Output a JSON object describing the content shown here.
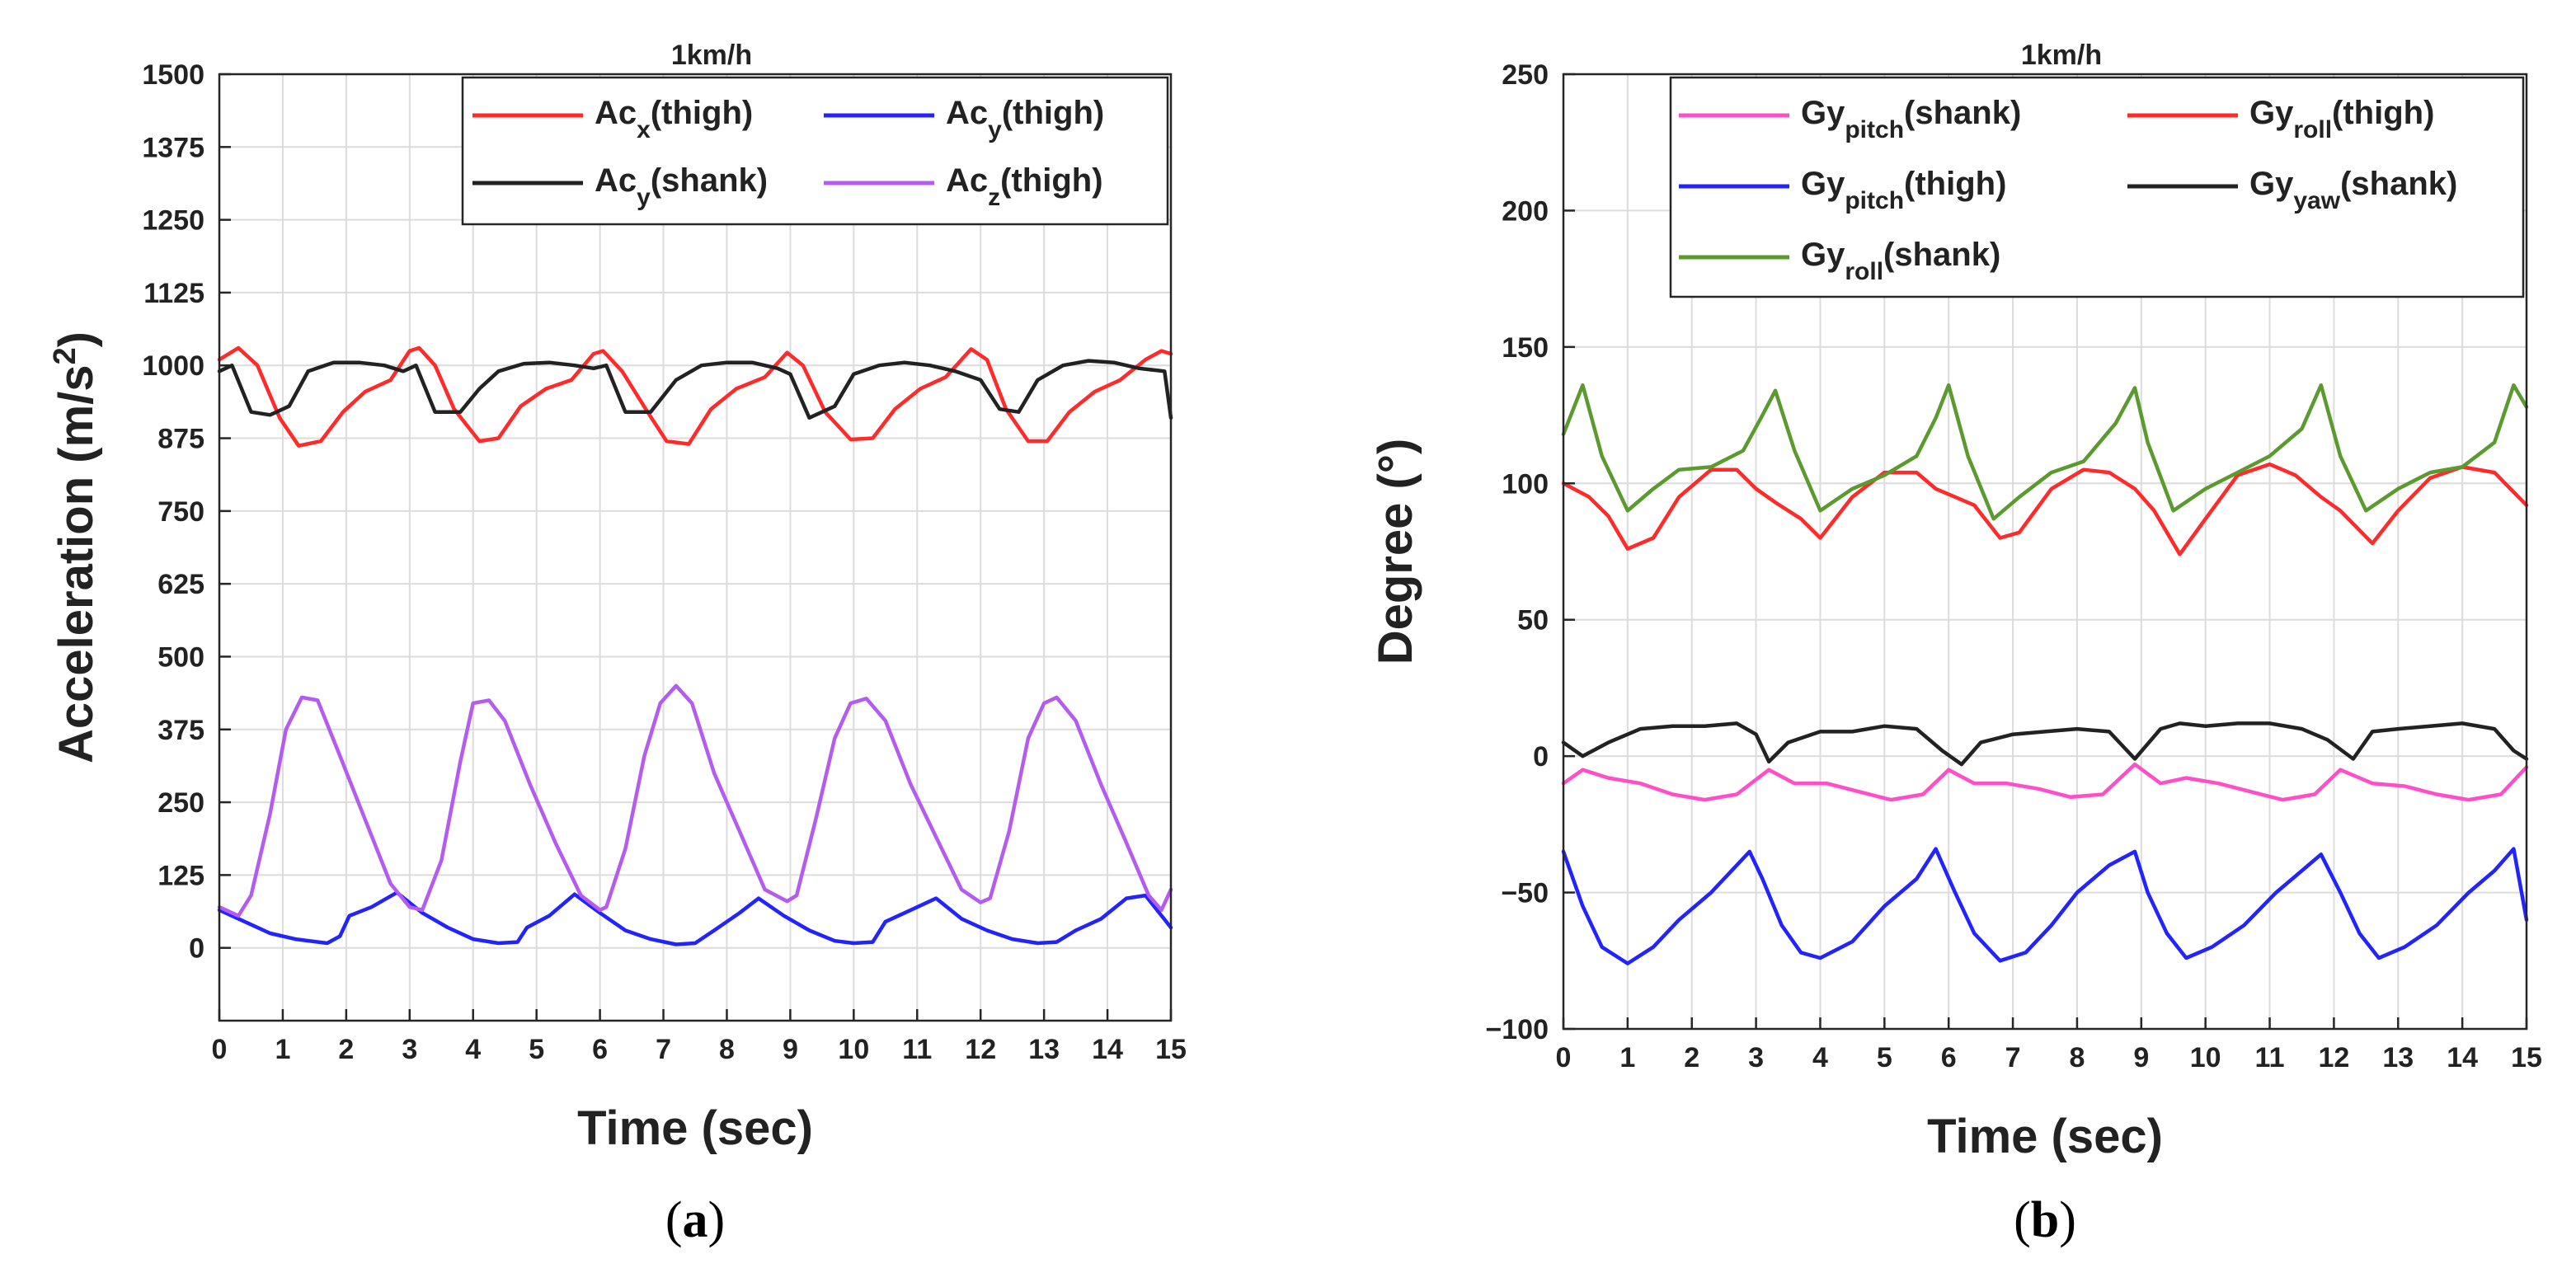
{
  "chart_data": [
    {
      "type": "line",
      "panel_label": "(a)",
      "panel_letter": "a",
      "title": "1km/h",
      "xlabel": "Time (sec)",
      "ylabel": "Acceleration (m/s2)",
      "ylabel_parts": {
        "base": "Acceleration (m/s",
        "sup": "2",
        "end": ")"
      },
      "xlim": [
        0,
        15
      ],
      "ylim": [
        -125,
        1500
      ],
      "grid": true,
      "legend_position": "top-right",
      "x_ticks": [
        0,
        1,
        2,
        3,
        4,
        5,
        6,
        7,
        8,
        9,
        10,
        11,
        12,
        13,
        14,
        15
      ],
      "x_tick_labels": [
        "0",
        "1",
        "2",
        "3",
        "4",
        "5",
        "6",
        "7",
        "8",
        "9",
        "10",
        "11",
        "12",
        "13",
        "14",
        "15"
      ],
      "y_ticks": [
        0,
        125,
        250,
        375,
        500,
        625,
        750,
        875,
        1000,
        1125,
        1250,
        1375,
        1500
      ],
      "y_tick_labels": [
        "0",
        "125",
        "250",
        "375",
        "500",
        "625",
        "750",
        "875",
        "1000",
        "1125",
        "1250",
        "1375",
        "1500"
      ],
      "series": [
        {
          "name": "Acx(thigh)",
          "label_base": "Ac",
          "label_sub": "x",
          "label_rest": "(thigh)",
          "color": "#ff2a2a",
          "x": [
            0,
            0.3,
            0.6,
            0.95,
            1.25,
            1.6,
            1.95,
            2.3,
            2.7,
            3.0,
            3.15,
            3.4,
            3.7,
            4.1,
            4.4,
            4.75,
            5.15,
            5.55,
            5.9,
            6.05,
            6.35,
            6.75,
            7.05,
            7.4,
            7.75,
            8.15,
            8.6,
            8.95,
            9.2,
            9.55,
            9.95,
            10.3,
            10.65,
            11.05,
            11.45,
            11.85,
            12.1,
            12.4,
            12.75,
            13.05,
            13.4,
            13.8,
            14.2,
            14.6,
            14.85,
            15.0
          ],
          "values": [
            1010,
            1030,
            1000,
            910,
            862,
            870,
            920,
            955,
            975,
            1025,
            1030,
            1000,
            925,
            870,
            875,
            930,
            960,
            975,
            1020,
            1025,
            990,
            920,
            870,
            865,
            925,
            960,
            980,
            1022,
            1000,
            920,
            873,
            875,
            925,
            960,
            980,
            1028,
            1010,
            925,
            870,
            870,
            920,
            955,
            975,
            1010,
            1025,
            1020
          ]
        },
        {
          "name": "Acy(thigh)",
          "label_base": "Ac",
          "label_sub": "y",
          "label_rest": "(thigh)",
          "color": "#2323ff",
          "x": [
            0,
            0.4,
            0.8,
            1.2,
            1.7,
            1.9,
            2.05,
            2.4,
            2.8,
            3.2,
            3.6,
            4.0,
            4.4,
            4.7,
            4.85,
            5.2,
            5.6,
            6.0,
            6.4,
            6.8,
            7.2,
            7.5,
            7.8,
            8.2,
            8.5,
            8.9,
            9.3,
            9.7,
            10.0,
            10.3,
            10.5,
            10.9,
            11.3,
            11.7,
            12.1,
            12.5,
            12.9,
            13.2,
            13.5,
            13.9,
            14.3,
            14.6,
            15.0
          ],
          "values": [
            65,
            45,
            25,
            15,
            8,
            20,
            55,
            70,
            95,
            60,
            35,
            15,
            8,
            10,
            35,
            55,
            92,
            60,
            30,
            15,
            6,
            8,
            30,
            60,
            85,
            55,
            30,
            12,
            8,
            10,
            45,
            65,
            85,
            50,
            30,
            15,
            8,
            10,
            30,
            50,
            85,
            90,
            35
          ]
        },
        {
          "name": "Acy(shank)",
          "label_base": "Ac",
          "label_sub": "y",
          "label_rest": "(shank)",
          "color": "#222222",
          "x": [
            0,
            0.2,
            0.5,
            0.8,
            1.1,
            1.4,
            1.8,
            2.2,
            2.6,
            2.9,
            3.1,
            3.4,
            3.8,
            4.1,
            4.4,
            4.8,
            5.2,
            5.6,
            5.9,
            6.1,
            6.4,
            6.8,
            7.2,
            7.6,
            8.0,
            8.4,
            8.8,
            9.0,
            9.3,
            9.7,
            10.0,
            10.4,
            10.8,
            11.2,
            11.6,
            12.0,
            12.3,
            12.6,
            12.9,
            13.3,
            13.7,
            14.1,
            14.5,
            14.9,
            15.0
          ],
          "values": [
            990,
            1000,
            920,
            915,
            930,
            990,
            1005,
            1005,
            1000,
            990,
            1000,
            920,
            920,
            960,
            990,
            1003,
            1005,
            1000,
            995,
            1000,
            920,
            920,
            975,
            1000,
            1005,
            1005,
            995,
            985,
            910,
            930,
            985,
            1000,
            1005,
            1000,
            990,
            975,
            925,
            920,
            975,
            1000,
            1008,
            1005,
            995,
            990,
            910
          ]
        },
        {
          "name": "Acz(thigh)",
          "label_base": "Ac",
          "label_sub": "z",
          "label_rest": "(thigh)",
          "color": "#b45cf0",
          "x": [
            0,
            0.3,
            0.5,
            0.8,
            1.05,
            1.3,
            1.55,
            1.9,
            2.3,
            2.7,
            3.0,
            3.2,
            3.5,
            3.8,
            4.0,
            4.25,
            4.5,
            4.9,
            5.3,
            5.7,
            6.0,
            6.1,
            6.4,
            6.7,
            6.95,
            7.2,
            7.45,
            7.8,
            8.2,
            8.6,
            8.95,
            9.1,
            9.4,
            9.7,
            9.95,
            10.2,
            10.5,
            10.9,
            11.3,
            11.7,
            12.0,
            12.15,
            12.45,
            12.75,
            13.0,
            13.2,
            13.5,
            13.9,
            14.3,
            14.65,
            14.85,
            15.0
          ],
          "values": [
            70,
            55,
            90,
            230,
            375,
            430,
            425,
            330,
            220,
            110,
            70,
            65,
            150,
            320,
            420,
            425,
            390,
            280,
            180,
            90,
            65,
            70,
            170,
            330,
            420,
            450,
            420,
            300,
            200,
            100,
            80,
            90,
            220,
            360,
            420,
            428,
            390,
            280,
            190,
            100,
            78,
            85,
            200,
            360,
            420,
            430,
            390,
            280,
            180,
            90,
            65,
            100
          ]
        }
      ]
    },
    {
      "type": "line",
      "panel_label": "(b)",
      "panel_letter": "b",
      "title": "1km/h",
      "xlabel": "Time (sec)",
      "ylabel": "Degree (°)",
      "xlim": [
        0,
        15
      ],
      "ylim": [
        -100,
        250
      ],
      "grid": true,
      "legend_position": "top-right",
      "x_ticks": [
        0,
        1,
        2,
        3,
        4,
        5,
        6,
        7,
        8,
        9,
        10,
        11,
        12,
        13,
        14,
        15
      ],
      "x_tick_labels": [
        "0",
        "1",
        "2",
        "3",
        "4",
        "5",
        "6",
        "7",
        "8",
        "9",
        "10",
        "11",
        "12",
        "13",
        "14",
        "15"
      ],
      "y_ticks": [
        -100,
        -50,
        0,
        50,
        100,
        150,
        200,
        250
      ],
      "y_tick_labels": [
        "−100",
        "−50",
        "0",
        "50",
        "100",
        "150",
        "200",
        "250"
      ],
      "series": [
        {
          "name": "Gypitch(shank)",
          "label_base": "Gy",
          "label_sub": "pitch",
          "label_rest": "(shank)",
          "color": "#ff4fc8",
          "x": [
            0,
            0.3,
            0.7,
            1.2,
            1.7,
            2.2,
            2.7,
            3.2,
            3.6,
            4.1,
            4.6,
            5.1,
            5.6,
            6.0,
            6.4,
            6.9,
            7.4,
            7.9,
            8.4,
            8.9,
            9.3,
            9.7,
            10.2,
            10.7,
            11.2,
            11.7,
            12.1,
            12.6,
            13.1,
            13.6,
            14.1,
            14.6,
            15.0
          ],
          "values": [
            -10,
            -5,
            -8,
            -10,
            -14,
            -16,
            -14,
            -5,
            -10,
            -10,
            -13,
            -16,
            -14,
            -5,
            -10,
            -10,
            -12,
            -15,
            -14,
            -3,
            -10,
            -8,
            -10,
            -13,
            -16,
            -14,
            -5,
            -10,
            -11,
            -14,
            -16,
            -14,
            -4
          ]
        },
        {
          "name": "Gyroll(thigh)",
          "label_base": "Gy",
          "label_sub": "roll",
          "label_rest": "(thigh)",
          "color": "#ff2a2a",
          "x": [
            0,
            0.4,
            0.7,
            1.0,
            1.4,
            1.8,
            2.3,
            2.7,
            3.0,
            3.3,
            3.7,
            4.0,
            4.5,
            5.0,
            5.5,
            5.8,
            6.1,
            6.4,
            6.8,
            7.1,
            7.6,
            8.1,
            8.5,
            8.9,
            9.2,
            9.6,
            10.0,
            10.5,
            11.0,
            11.4,
            11.8,
            12.1,
            12.6,
            13.0,
            13.5,
            14.0,
            14.5,
            15.0
          ],
          "values": [
            100,
            95,
            88,
            76,
            80,
            95,
            105,
            105,
            98,
            93,
            87,
            80,
            95,
            104,
            104,
            98,
            95,
            92,
            80,
            82,
            98,
            105,
            104,
            98,
            90,
            74,
            87,
            103,
            107,
            103,
            95,
            90,
            78,
            90,
            102,
            106,
            104,
            92
          ]
        },
        {
          "name": "Gypitch(thigh)",
          "label_base": "Gy",
          "label_sub": "pitch",
          "label_rest": "(thigh)",
          "color": "#2323ff",
          "x": [
            0,
            0.3,
            0.6,
            1.0,
            1.4,
            1.8,
            2.3,
            2.9,
            3.1,
            3.4,
            3.7,
            4.0,
            4.5,
            5.0,
            5.5,
            5.8,
            6.1,
            6.4,
            6.8,
            7.2,
            7.6,
            8.0,
            8.5,
            8.9,
            9.1,
            9.4,
            9.7,
            10.1,
            10.6,
            11.1,
            11.6,
            11.8,
            12.1,
            12.4,
            12.7,
            13.1,
            13.6,
            14.1,
            14.5,
            14.8,
            15.0
          ],
          "values": [
            -35,
            -55,
            -70,
            -76,
            -70,
            -60,
            -50,
            -35,
            -45,
            -62,
            -72,
            -74,
            -68,
            -55,
            -45,
            -34,
            -50,
            -65,
            -75,
            -72,
            -62,
            -50,
            -40,
            -35,
            -50,
            -65,
            -74,
            -70,
            -62,
            -50,
            -40,
            -36,
            -50,
            -65,
            -74,
            -70,
            -62,
            -50,
            -42,
            -34,
            -60
          ]
        },
        {
          "name": "Gyyaw(shank)",
          "label_base": "Gy",
          "label_sub": "yaw",
          "label_rest": "(shank)",
          "color": "#222222",
          "x": [
            0,
            0.3,
            0.7,
            1.2,
            1.7,
            2.2,
            2.7,
            3.0,
            3.2,
            3.5,
            4.0,
            4.5,
            5.0,
            5.5,
            5.9,
            6.2,
            6.5,
            7.0,
            7.5,
            8.0,
            8.5,
            8.9,
            9.3,
            9.6,
            10.0,
            10.5,
            11.0,
            11.5,
            11.9,
            12.3,
            12.6,
            13.0,
            13.5,
            14.0,
            14.5,
            14.8,
            15.0
          ],
          "values": [
            5,
            0,
            5,
            10,
            11,
            11,
            12,
            8,
            -2,
            5,
            9,
            9,
            11,
            10,
            2,
            -3,
            5,
            8,
            9,
            10,
            9,
            -1,
            10,
            12,
            11,
            12,
            12,
            10,
            6,
            -1,
            9,
            10,
            11,
            12,
            10,
            2,
            -1
          ]
        },
        {
          "name": "Gyroll(shank)",
          "label_base": "Gy",
          "label_sub": "roll",
          "label_rest": "(shank)",
          "color": "#5b9a2e",
          "x": [
            0,
            0.3,
            0.6,
            1.0,
            1.4,
            1.8,
            2.3,
            2.8,
            3.1,
            3.3,
            3.6,
            4.0,
            4.5,
            5.0,
            5.5,
            5.8,
            6.0,
            6.3,
            6.7,
            7.1,
            7.6,
            8.1,
            8.6,
            8.9,
            9.1,
            9.5,
            10.0,
            10.5,
            11.0,
            11.5,
            11.8,
            12.1,
            12.5,
            13.0,
            13.5,
            14.0,
            14.5,
            14.8,
            15.0
          ],
          "values": [
            118,
            136,
            110,
            90,
            98,
            105,
            106,
            112,
            125,
            134,
            112,
            90,
            98,
            103,
            110,
            124,
            136,
            110,
            87,
            95,
            104,
            108,
            122,
            135,
            115,
            90,
            98,
            104,
            110,
            120,
            136,
            110,
            90,
            98,
            104,
            106,
            115,
            136,
            128
          ]
        }
      ]
    }
  ]
}
